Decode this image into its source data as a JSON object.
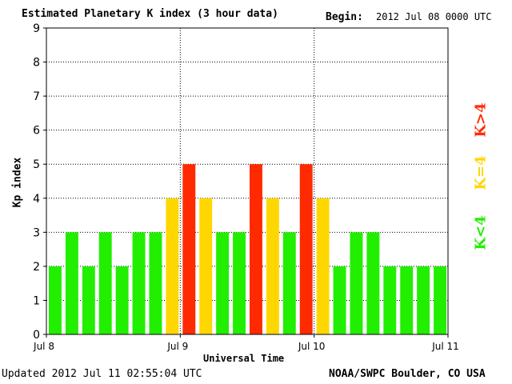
{
  "header": {
    "title": "Estimated Planetary K index (3 hour data)",
    "begin_label": "Begin:",
    "begin_value": "2012 Jul 08 0000 UTC"
  },
  "footer": {
    "updated": "Updated 2012 Jul 11 02:55:04 UTC",
    "source": "NOAA/SWPC Boulder, CO USA"
  },
  "legend": {
    "low": "K<4",
    "mid": "K=4",
    "high": "K>4"
  },
  "colors": {
    "low": "#22ee00",
    "mid": "#ffd700",
    "high": "#ff2a00",
    "grid": "#000000",
    "background": "#ffffff"
  },
  "chart_data": {
    "type": "bar",
    "title": "Estimated Planetary K index (3 hour data)",
    "xlabel": "Universal Time",
    "ylabel": "Kp index",
    "ylim": [
      0,
      9
    ],
    "yticks": [
      "0",
      "1",
      "2",
      "3",
      "4",
      "5",
      "6",
      "7",
      "8",
      "9"
    ],
    "xticks": [
      "Jul 8",
      "Jul 9",
      "Jul 10",
      "Jul 11"
    ],
    "interval_hours": 3,
    "values": [
      2,
      3,
      2,
      3,
      2,
      3,
      3,
      4,
      5,
      4,
      3,
      3,
      5,
      4,
      3,
      5,
      4,
      2,
      3,
      3,
      2,
      2,
      2,
      2
    ],
    "grid": true,
    "color_rule": {
      "below_4": "low",
      "equal_4": "mid",
      "above_4": "high"
    }
  }
}
